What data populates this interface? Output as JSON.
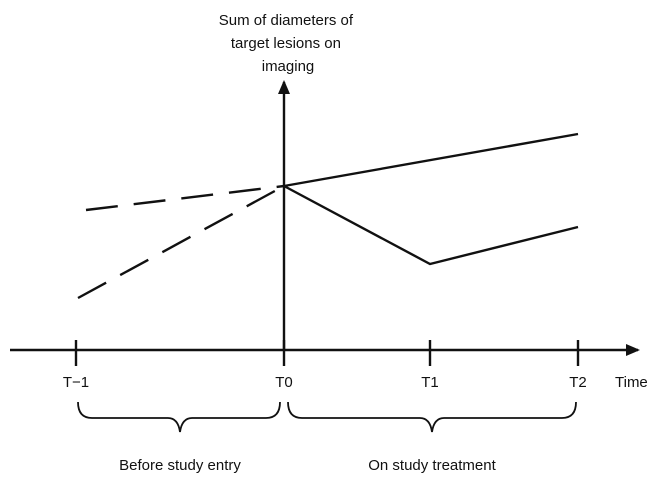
{
  "y_axis_label": [
    "Sum of diameters of",
    "target lesions on",
    "imaging"
  ],
  "x_axis_label": "Time",
  "tick_labels": [
    "T−1",
    "T0",
    "T1",
    "T2"
  ],
  "period_labels": [
    "Before study entry",
    "On study treatment"
  ],
  "line_color": "#111111"
}
